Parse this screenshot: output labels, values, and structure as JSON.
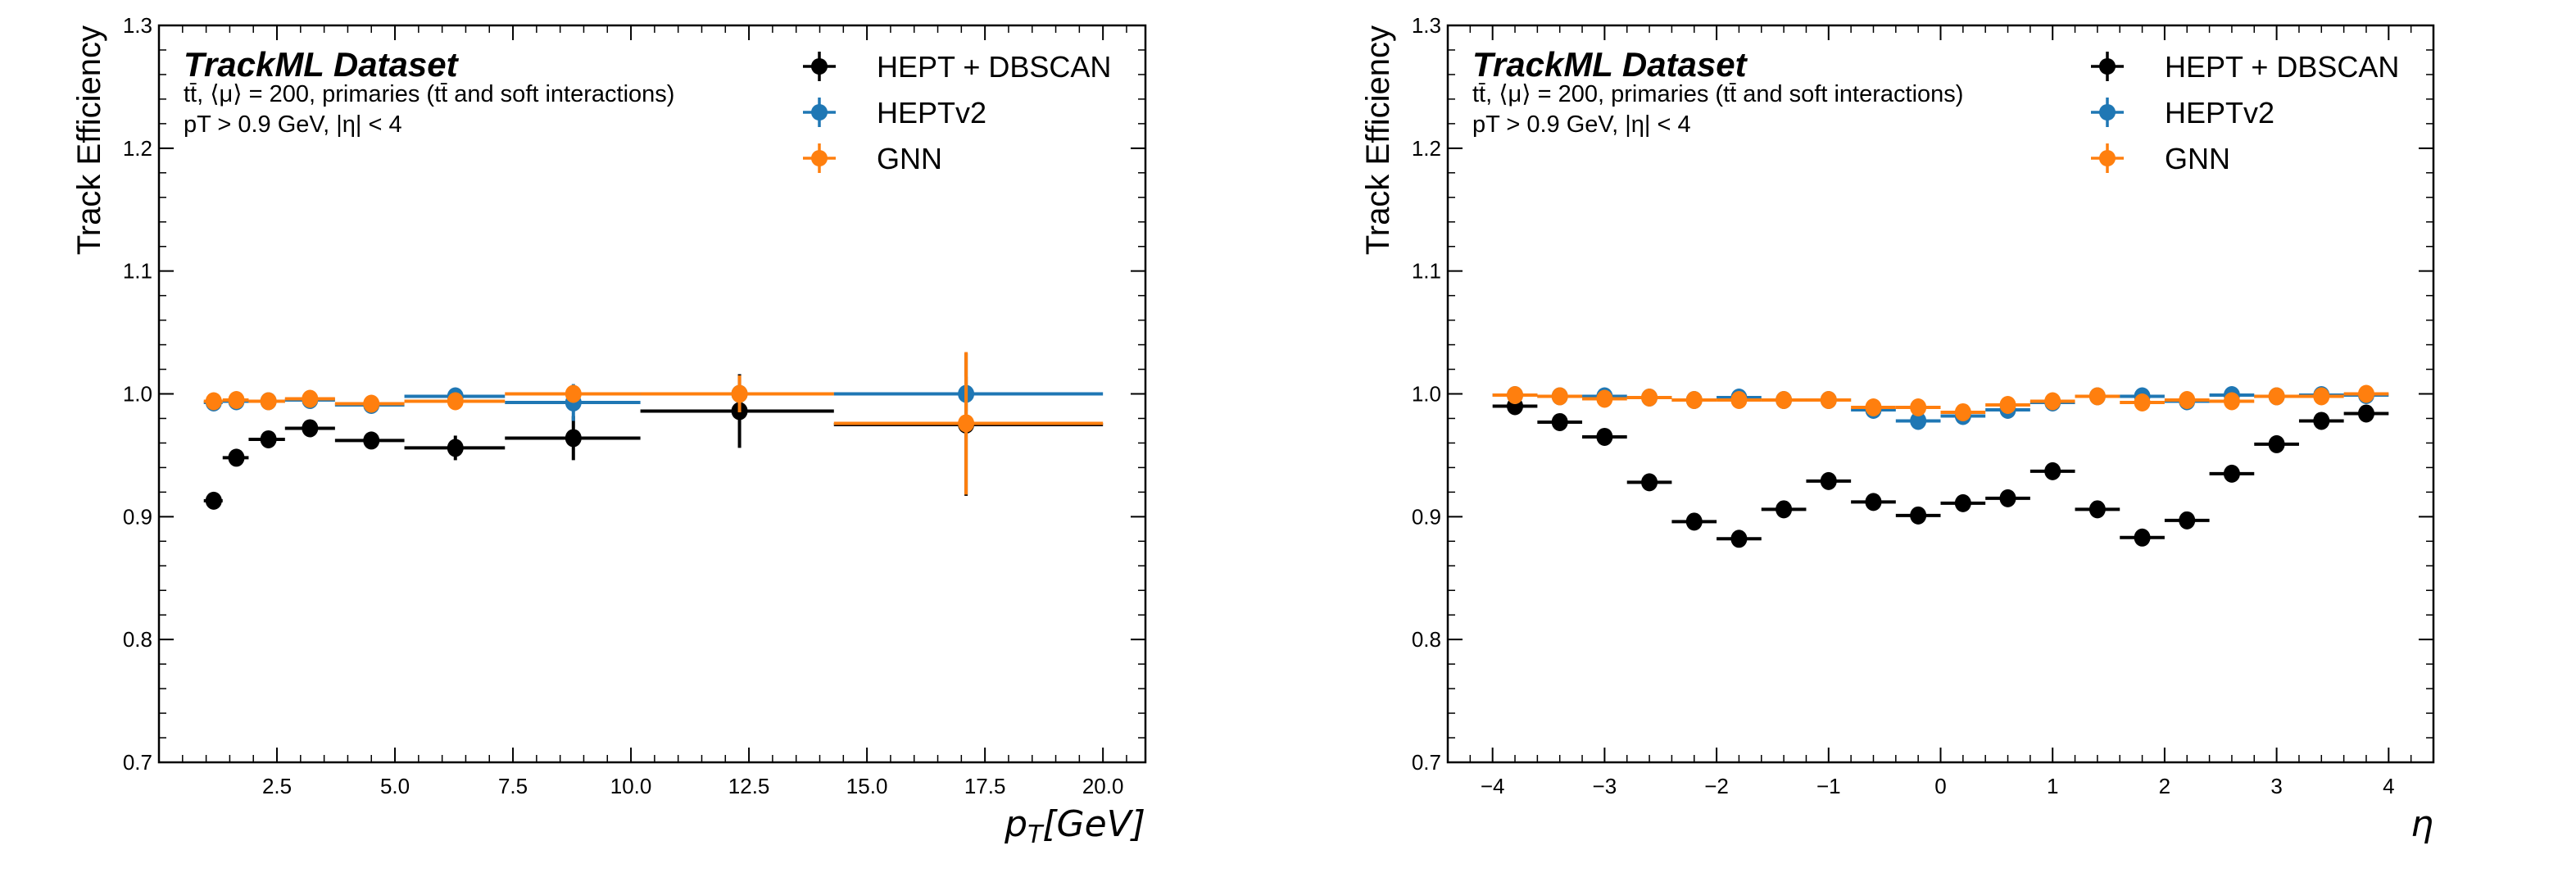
{
  "chart_data": [
    {
      "type": "scatter",
      "variant": "binned errorbar",
      "title": "TrackML Dataset",
      "subtitle_lines": [
        "tt̄, ⟨μ⟩ = 200, primaries (tt̄ and soft interactions)",
        "pT > 0.9 GeV, |η| < 4"
      ],
      "xlabel": "p_T[GeV]",
      "ylabel": "Track Efficiency",
      "xlim": [
        0,
        20.9
      ],
      "ylim": [
        0.7,
        1.3
      ],
      "xticks": [
        2.5,
        5.0,
        7.5,
        10.0,
        12.5,
        15.0,
        17.5,
        20.0
      ],
      "xtick_labels": [
        "2.5",
        "5.0",
        "7.5",
        "10.0",
        "12.5",
        "15.0",
        "17.5",
        "20.0"
      ],
      "yticks": [
        0.7,
        0.8,
        0.9,
        1.0,
        1.1,
        1.2,
        1.3
      ],
      "ytick_labels": [
        "0.7",
        "0.8",
        "0.9",
        "1.0",
        "1.1",
        "1.2",
        "1.3"
      ],
      "grid": false,
      "legend_position": "top-right",
      "bin_edges": [
        0.95,
        1.35,
        1.9,
        2.67,
        3.73,
        5.2,
        7.33,
        10.2,
        14.3,
        20.0
      ],
      "x": [
        1.16,
        1.64,
        2.32,
        3.2,
        4.5,
        6.28,
        8.78,
        12.3,
        17.1
      ],
      "series": [
        {
          "name": "HEPT + DBSCAN",
          "color": "#000000",
          "values": [
            0.913,
            0.948,
            0.963,
            0.972,
            0.962,
            0.956,
            0.964,
            0.986,
            0.975
          ],
          "yerr": [
            0.002,
            0.003,
            0.003,
            0.003,
            0.004,
            0.01,
            0.018,
            0.03,
            0.058
          ]
        },
        {
          "name": "HEPTv2",
          "color": "#1f77b4",
          "values": [
            0.993,
            0.994,
            0.994,
            0.995,
            0.991,
            0.998,
            0.993,
            1.0,
            1.0
          ],
          "yerr": [
            0.001,
            0.001,
            0.001,
            0.001,
            0.002,
            0.002,
            0.015,
            0.0,
            0.014
          ]
        },
        {
          "name": "GNN",
          "color": "#ff7f0e",
          "values": [
            0.994,
            0.995,
            0.994,
            0.996,
            0.992,
            0.994,
            1.0,
            1.0,
            0.976
          ],
          "yerr": [
            0.001,
            0.001,
            0.001,
            0.001,
            0.002,
            0.003,
            0.002,
            0.015,
            0.058
          ]
        }
      ]
    },
    {
      "type": "scatter",
      "variant": "binned errorbar",
      "title": "TrackML Dataset",
      "subtitle_lines": [
        "tt̄, ⟨μ⟩ = 200, primaries (tt̄ and soft interactions)",
        "pT > 0.9 GeV, |η| < 4"
      ],
      "xlabel": "η",
      "ylabel": "Track Efficiency",
      "xlim": [
        -4.4,
        4.4
      ],
      "ylim": [
        0.7,
        1.3
      ],
      "xticks": [
        -4,
        -3,
        -2,
        -1,
        0,
        1,
        2,
        3,
        4
      ],
      "xtick_labels": [
        "−4",
        "−3",
        "−2",
        "−1",
        "0",
        "1",
        "2",
        "3",
        "4"
      ],
      "yticks": [
        0.7,
        0.8,
        0.9,
        1.0,
        1.1,
        1.2,
        1.3
      ],
      "ytick_labels": [
        "0.7",
        "0.8",
        "0.9",
        "1.0",
        "1.1",
        "1.2",
        "1.3"
      ],
      "grid": false,
      "legend_position": "top-right",
      "bin_width": 0.4,
      "x": [
        -3.8,
        -3.4,
        -3.0,
        -2.6,
        -2.2,
        -1.8,
        -1.4,
        -1.0,
        -0.6,
        -0.2,
        0.2,
        0.6,
        1.0,
        1.4,
        1.8,
        2.2,
        2.6,
        3.0,
        3.4,
        3.8
      ],
      "series": [
        {
          "name": "HEPT + DBSCAN",
          "color": "#000000",
          "values": [
            0.99,
            0.977,
            0.965,
            0.928,
            0.896,
            0.882,
            0.906,
            0.929,
            0.912,
            0.901,
            0.911,
            0.915,
            0.937,
            0.906,
            0.883,
            0.897,
            0.935,
            0.959,
            0.978,
            0.984
          ]
        },
        {
          "name": "HEPTv2",
          "color": "#1f77b4",
          "values": [
            0.999,
            0.998,
            0.998,
            0.997,
            0.995,
            0.997,
            0.995,
            0.995,
            0.987,
            0.978,
            0.982,
            0.987,
            0.993,
            0.998,
            0.998,
            0.994,
            0.999,
            0.998,
            0.999,
            0.999
          ]
        },
        {
          "name": "GNN",
          "color": "#ff7f0e",
          "values": [
            0.999,
            0.998,
            0.996,
            0.997,
            0.995,
            0.995,
            0.995,
            0.995,
            0.989,
            0.989,
            0.985,
            0.991,
            0.994,
            0.998,
            0.993,
            0.995,
            0.994,
            0.998,
            0.998,
            1.0
          ]
        }
      ]
    }
  ]
}
